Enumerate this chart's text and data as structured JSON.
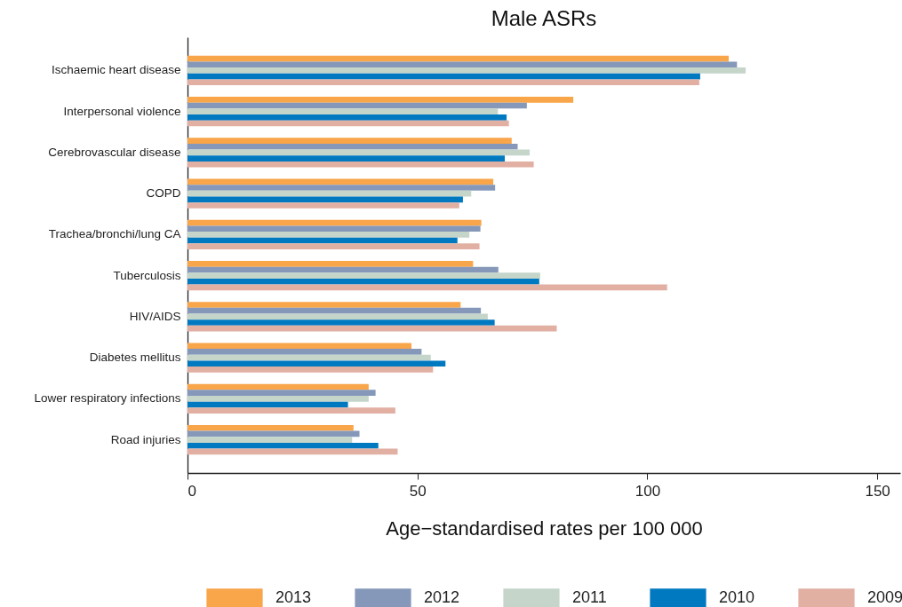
{
  "chart_data": {
    "type": "bar",
    "orientation": "horizontal",
    "title": "Male ASRs",
    "xlabel": "Age−standardised rates per 100 000",
    "categories": [
      "Ischaemic heart disease",
      "Interpersonal violence",
      "Cerebrovascular disease",
      "COPD",
      "Trachea/bronchi/lung CA",
      "Tuberculosis",
      "HIV/AIDS",
      "Diabetes mellitus",
      "Lower respiratory infections",
      "Road injuries"
    ],
    "series": [
      {
        "name": "2013",
        "color": "#f9a54a",
        "values": [
          117.7,
          83.9,
          70.5,
          66.5,
          63.9,
          62.1,
          59.4,
          48.7,
          39.4,
          36.1
        ]
      },
      {
        "name": "2012",
        "color": "#8598ba",
        "values": [
          119.5,
          73.8,
          71.8,
          66.9,
          63.7,
          67.6,
          63.8,
          50.9,
          40.9,
          37.4
        ]
      },
      {
        "name": "2011",
        "color": "#c5d5ca",
        "values": [
          121.4,
          67.5,
          74.4,
          61.7,
          61.3,
          76.7,
          65.3,
          52.9,
          39.4,
          35.8
        ]
      },
      {
        "name": "2010",
        "color": "#0079c1",
        "values": [
          111.5,
          69.4,
          69.0,
          59.9,
          58.7,
          76.5,
          66.8,
          56.1,
          34.9,
          41.5
        ]
      },
      {
        "name": "2009",
        "color": "#e2afa3",
        "values": [
          111.3,
          69.9,
          75.3,
          59.1,
          63.5,
          104.3,
          80.3,
          53.4,
          45.2,
          45.7
        ]
      }
    ],
    "xlim": [
      0,
      155
    ],
    "xticks": [
      0,
      50,
      100,
      150
    ],
    "grid": false,
    "legend": "bottom"
  }
}
